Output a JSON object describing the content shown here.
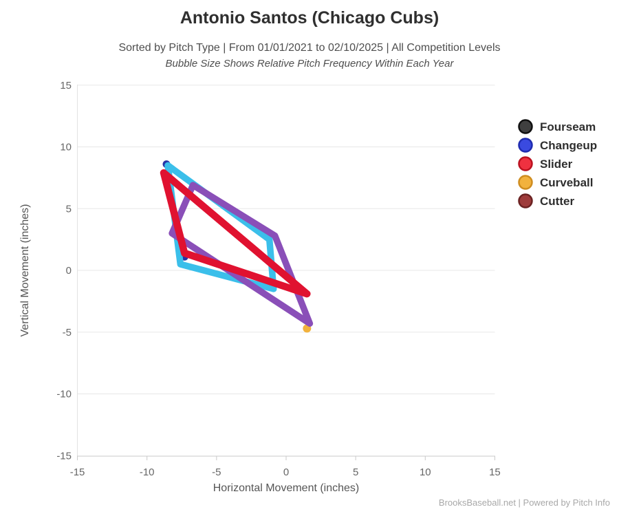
{
  "header": {
    "title": "Antonio Santos (Chicago Cubs)",
    "subtitle": "Sorted by Pitch Type | From 01/01/2021 to 02/10/2025 | All Competition Levels",
    "subtitle_note": "Bubble Size Shows Relative Pitch Frequency Within Each Year"
  },
  "footer": {
    "credit": "BrooksBaseball.net | Powered by Pitch Info"
  },
  "chart_data": {
    "type": "scatter",
    "title": "Antonio Santos (Chicago Cubs)",
    "subtitle": "Sorted by Pitch Type | From 01/01/2021 to 02/10/2025 | All Competition Levels",
    "subtitle_note": "Bubble Size Shows Relative Pitch Frequency Within Each Year",
    "xlabel": "Horizontal Movement (inches)",
    "ylabel": "Vertical Movement (inches)",
    "xlim": [
      -15,
      15
    ],
    "ylim": [
      -15,
      15
    ],
    "xticks": [
      -15,
      -10,
      -5,
      0,
      5,
      10,
      15
    ],
    "yticks": [
      15,
      10,
      5,
      0,
      -5,
      -10,
      -15
    ],
    "grid": "horizontal-only",
    "legend_position": "right",
    "legend": [
      {
        "label": "Fourseam",
        "fill": "#3f3f3f",
        "stroke": "#101010"
      },
      {
        "label": "Changeup",
        "fill": "#3a4ae0",
        "stroke": "#1f2cb0"
      },
      {
        "label": "Slider",
        "fill": "#ef3140",
        "stroke": "#bb1220"
      },
      {
        "label": "Curveball",
        "fill": "#f2b23d",
        "stroke": "#cf8d20"
      },
      {
        "label": "Cutter",
        "fill": "#9e3b3b",
        "stroke": "#6b2222"
      }
    ],
    "series": [
      {
        "name": "cyan-movement-polygon",
        "color": "#3bbfea",
        "width": 9.5,
        "closed": true,
        "points": [
          [
            -8.5,
            8.5
          ],
          [
            -1.2,
            2.5
          ],
          [
            -0.9,
            -1.5
          ],
          [
            -7.6,
            0.5
          ]
        ]
      },
      {
        "name": "purple-movement-polygon",
        "color": "#8a4fb8",
        "width": 9.5,
        "closed": true,
        "points": [
          [
            -6.7,
            6.9
          ],
          [
            -0.8,
            2.8
          ],
          [
            1.7,
            -4.3
          ],
          [
            -8.2,
            3.0
          ]
        ]
      },
      {
        "name": "red-movement-polygon",
        "color": "#e01230",
        "width": 10.5,
        "closed": true,
        "points": [
          [
            -8.8,
            7.9
          ],
          [
            -7.3,
            1.4
          ],
          [
            1.5,
            -1.9
          ]
        ]
      }
    ],
    "markers": [
      {
        "name": "navy-bubble-top",
        "color": "#2633a5",
        "x": -8.6,
        "y": 8.6,
        "r": 5.5
      },
      {
        "name": "navy-bubble-left",
        "color": "#2633a5",
        "x": -7.3,
        "y": 1.1,
        "r": 5.5
      },
      {
        "name": "orange-bubble-bottom",
        "color": "#f2b23d",
        "x": 1.5,
        "y": -4.7,
        "r": 6
      }
    ]
  }
}
